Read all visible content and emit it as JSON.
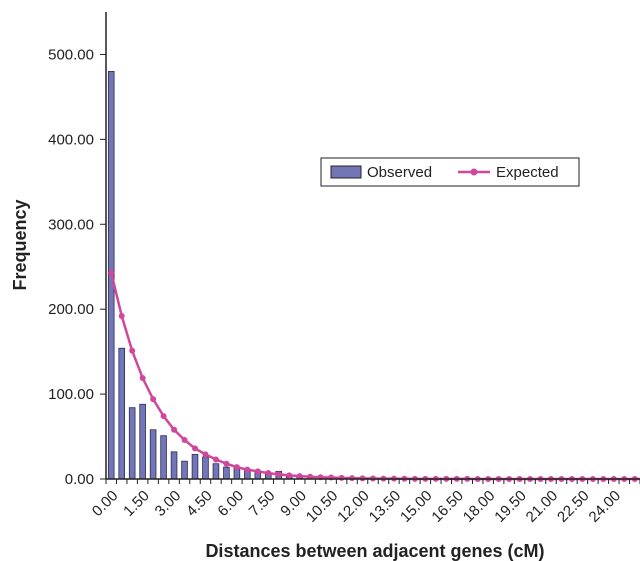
{
  "chart_data": {
    "type": "bar",
    "xlabel": "Distances between adjacent genes (cM)",
    "ylabel": "Frequency",
    "ylim": [
      0,
      550
    ],
    "yticks": [
      "0.00",
      "100.00",
      "200.00",
      "300.00",
      "400.00",
      "500.00"
    ],
    "x_tick_labels": [
      "0.00",
      "1.50",
      "3.00",
      "4.50",
      "6.00",
      "7.50",
      "9.00",
      "10.50",
      "12.00",
      "13.50",
      "15.00",
      "16.50",
      "18.00",
      "19.50",
      "21.00",
      "22.50",
      "24.00"
    ],
    "bin_width": 0.5,
    "x_start": 0.0,
    "x_end": 25.5,
    "legend": {
      "position": "right-center",
      "entries": [
        "Observed",
        "Expected"
      ]
    },
    "series": [
      {
        "name": "Observed",
        "kind": "bar",
        "color": "#7276b7",
        "x": [
          0.0,
          0.5,
          1.0,
          1.5,
          2.0,
          2.5,
          3.0,
          3.5,
          4.0,
          4.5,
          5.0,
          5.5,
          6.0,
          6.5,
          7.0,
          7.5,
          8.0,
          8.5,
          9.0,
          9.5,
          10.0,
          10.5,
          11.0,
          11.5,
          12.0
        ],
        "values": [
          480,
          154,
          84,
          88,
          58,
          51,
          32,
          21,
          29,
          26,
          18,
          14,
          13,
          10,
          8,
          7,
          9,
          4,
          3,
          2,
          2,
          1,
          1,
          1,
          1
        ]
      },
      {
        "name": "Expected",
        "kind": "line",
        "color": "#d0479b",
        "x": [
          0.0,
          0.5,
          1.0,
          1.5,
          2.0,
          2.5,
          3.0,
          3.5,
          4.0,
          4.5,
          5.0,
          5.5,
          6.0,
          6.5,
          7.0,
          7.5,
          8.0,
          8.5,
          9.0,
          9.5,
          10.0,
          10.5,
          11.0,
          11.5,
          12.0,
          12.5,
          13.0,
          13.5,
          14.0,
          14.5,
          15.0,
          15.5,
          16.0,
          16.5,
          17.0,
          17.5,
          18.0,
          18.5,
          19.0,
          19.5,
          20.0,
          20.5,
          21.0,
          21.5,
          22.0,
          22.5,
          23.0,
          23.5,
          24.0,
          24.5,
          25.0,
          25.5
        ],
        "values": [
          243,
          192,
          151,
          119,
          94,
          74,
          58,
          46,
          36,
          29,
          23,
          18,
          14,
          11,
          9,
          7,
          5.5,
          4.3,
          3.4,
          2.7,
          2.1,
          1.7,
          1.3,
          1,
          0.8,
          0.6,
          0.5,
          0.4,
          0.3,
          0.2,
          0.2,
          0.1,
          0.1,
          0.1,
          0.1,
          0,
          0,
          0,
          0,
          0,
          0,
          0,
          0,
          0,
          0,
          0,
          0,
          0,
          0,
          0,
          0,
          0
        ]
      }
    ]
  }
}
